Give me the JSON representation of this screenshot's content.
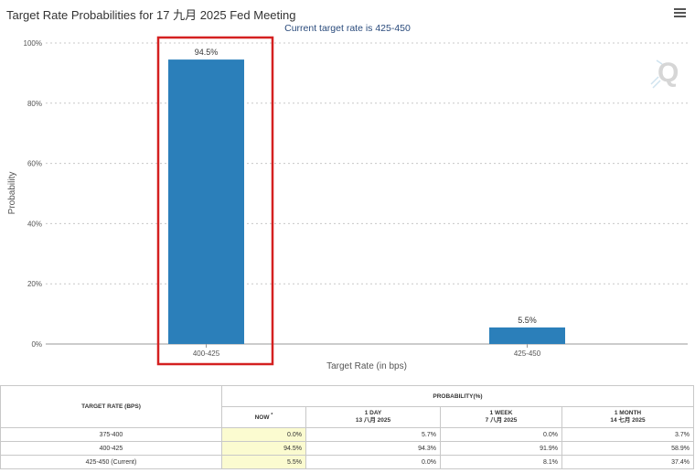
{
  "title": "Target Rate Probabilities for 17 九月 2025 Fed Meeting",
  "subtitle": "Current target rate is 425-450",
  "colors": {
    "bar": "#2b7fba",
    "highlight_border": "#d42020",
    "grid": "#c8c8c8",
    "now_column_bg": "#fbfbd0"
  },
  "icons": {
    "menu": "hamburger-menu-icon",
    "watermark": "q-logo-watermark"
  },
  "chart_data": {
    "type": "bar",
    "categories": [
      "400-425",
      "425-450"
    ],
    "values": [
      94.5,
      5.5
    ],
    "data_labels": [
      "94.5%",
      "5.5%"
    ],
    "title": "Target Rate Probabilities for 17 九月 2025 Fed Meeting",
    "subtitle": "Current target rate is 425-450",
    "xlabel": "Target Rate (in bps)",
    "ylabel": "Probability",
    "ylim": [
      0,
      100
    ],
    "yticks": [
      "0%",
      "20%",
      "40%",
      "60%",
      "80%",
      "100%"
    ],
    "grid": true,
    "highlighted_category": "400-425"
  },
  "table": {
    "rate_header": "TARGET RATE (BPS)",
    "prob_header": "PROBABILITY(%)",
    "columns": [
      {
        "label": "NOW",
        "marker": "*",
        "sub": ""
      },
      {
        "label": "1 DAY",
        "sub": "13 八月 2025"
      },
      {
        "label": "1 WEEK",
        "sub": "7 八月 2025"
      },
      {
        "label": "1 MONTH",
        "sub": "14 七月 2025"
      }
    ],
    "rows": [
      {
        "rate": "375-400",
        "now": "0.0%",
        "day": "5.7%",
        "week": "0.0%",
        "month": "3.7%"
      },
      {
        "rate": "400-425",
        "now": "94.5%",
        "day": "94.3%",
        "week": "91.9%",
        "month": "58.9%"
      },
      {
        "rate": "425-450 (Current)",
        "now": "5.5%",
        "day": "0.0%",
        "week": "8.1%",
        "month": "37.4%"
      }
    ]
  }
}
